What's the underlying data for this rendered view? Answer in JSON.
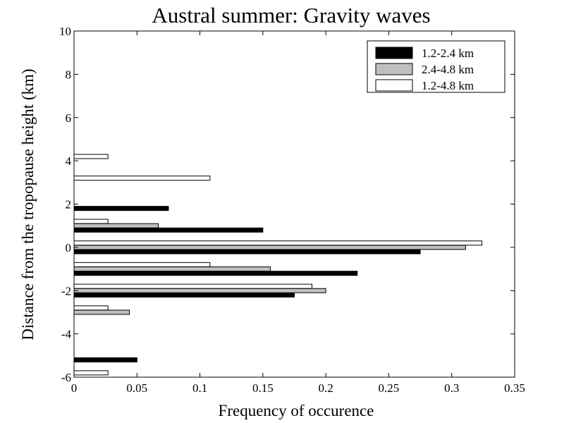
{
  "chart_data": {
    "type": "bar",
    "orientation": "horizontal",
    "title": "Austral summer: Gravity waves",
    "xlabel": "Frequency of occurence",
    "ylabel": "Distance from the tropopause height (km)",
    "xlim": [
      0,
      0.35
    ],
    "ylim": [
      -6,
      10
    ],
    "xticks": [
      0,
      0.05,
      0.1,
      0.15,
      0.2,
      0.25,
      0.3,
      0.35
    ],
    "xtick_labels": [
      "0",
      "0.05",
      "0.1",
      "0.15",
      "0.2",
      "0.25",
      "0.3",
      "0.35"
    ],
    "yticks": [
      -6,
      -4,
      -2,
      0,
      2,
      4,
      6,
      8,
      10
    ],
    "ytick_labels": [
      "-6",
      "-4",
      "-2",
      "0",
      "2",
      "4",
      "6",
      "8",
      "10"
    ],
    "grid": false,
    "legend_position": "top-right",
    "series": [
      {
        "name": "1.2-2.4 km",
        "color": "#000000",
        "points": [
          {
            "y": -5.2,
            "value": 0.05
          },
          {
            "y": -2.2,
            "value": 0.175
          },
          {
            "y": -1.2,
            "value": 0.225
          },
          {
            "y": -0.2,
            "value": 0.275
          },
          {
            "y": 0.8,
            "value": 0.15
          },
          {
            "y": 1.8,
            "value": 0.075
          }
        ]
      },
      {
        "name": "2.4-4.8 km",
        "color": "#bfbfbf",
        "points": [
          {
            "y": -3.0,
            "value": 0.044
          },
          {
            "y": -2.0,
            "value": 0.2
          },
          {
            "y": -1.0,
            "value": 0.156
          },
          {
            "y": 0.0,
            "value": 0.311
          },
          {
            "y": 1.0,
            "value": 0.067
          }
        ]
      },
      {
        "name": "1.2-4.8 km",
        "color": "#ffffff",
        "points": [
          {
            "y": -5.8,
            "value": 0.027
          },
          {
            "y": -2.8,
            "value": 0.027
          },
          {
            "y": -1.8,
            "value": 0.189
          },
          {
            "y": -0.8,
            "value": 0.108
          },
          {
            "y": 0.2,
            "value": 0.324
          },
          {
            "y": 1.2,
            "value": 0.027
          },
          {
            "y": 3.2,
            "value": 0.108
          },
          {
            "y": 4.2,
            "value": 0.027
          }
        ]
      }
    ]
  }
}
